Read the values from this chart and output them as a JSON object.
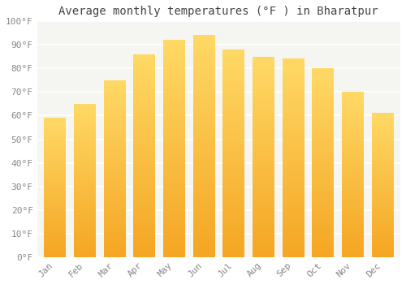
{
  "title": "Average monthly temperatures (°F ) in Bharatpur",
  "months": [
    "Jan",
    "Feb",
    "Mar",
    "Apr",
    "May",
    "Jun",
    "Jul",
    "Aug",
    "Sep",
    "Oct",
    "Nov",
    "Dec"
  ],
  "values": [
    59,
    65,
    75,
    86,
    92,
    94,
    88,
    85,
    84,
    80,
    70,
    61
  ],
  "bar_color_top": "#FFD966",
  "bar_color_bottom": "#F5A623",
  "ylim": [
    0,
    100
  ],
  "yticks": [
    0,
    10,
    20,
    30,
    40,
    50,
    60,
    70,
    80,
    90,
    100
  ],
  "ytick_labels": [
    "0°F",
    "10°F",
    "20°F",
    "30°F",
    "40°F",
    "50°F",
    "60°F",
    "70°F",
    "80°F",
    "90°F",
    "100°F"
  ],
  "bg_color": "#ffffff",
  "plot_bg_color": "#f5f5f2",
  "grid_color": "#ffffff",
  "title_fontsize": 10,
  "tick_fontsize": 8,
  "title_color": "#444444",
  "tick_color": "#888888"
}
